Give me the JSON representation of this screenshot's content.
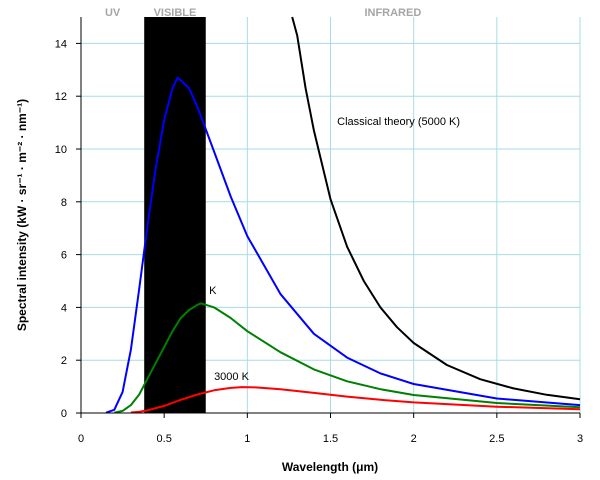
{
  "chart_data": {
    "type": "line",
    "xlabel": "Wavelength (μm)",
    "ylabel": "Spectral intensity (kW · sr⁻¹ · m⁻² · nm⁻¹)",
    "xlim": [
      0,
      3
    ],
    "ylim": [
      0,
      15
    ],
    "x_ticks": [
      "0",
      "0.5",
      "1",
      "1.5",
      "2",
      "2.5",
      "3"
    ],
    "y_ticks": [
      "0",
      "2",
      "4",
      "6",
      "8",
      "10",
      "12",
      "14"
    ],
    "grid": true,
    "regions": [
      {
        "label": "UV",
        "x_start": 0,
        "x_end": 0.38,
        "shaded": false
      },
      {
        "label": "VISIBLE",
        "x_start": 0.38,
        "x_end": 0.75,
        "shaded": true,
        "color": "#000000"
      },
      {
        "label": "INFRARED",
        "x_start": 0.75,
        "x_end": 3,
        "shaded": false
      }
    ],
    "series": [
      {
        "color": "#0000ff",
        "x": [
          0.15,
          0.2,
          0.25,
          0.3,
          0.35,
          0.4,
          0.45,
          0.5,
          0.55,
          0.58,
          0.6,
          0.65,
          0.7,
          0.8,
          0.9,
          1.0,
          1.2,
          1.4,
          1.6,
          1.8,
          2.0,
          2.5,
          3.0
        ],
        "y": [
          0.01,
          0.12,
          0.8,
          2.4,
          4.7,
          7.1,
          9.3,
          11.1,
          12.3,
          12.7,
          12.6,
          12.3,
          11.6,
          9.9,
          8.2,
          6.7,
          4.5,
          3.0,
          2.1,
          1.5,
          1.1,
          0.55,
          0.3
        ]
      },
      {
        "color": "#008000",
        "x": [
          0.2,
          0.25,
          0.3,
          0.35,
          0.4,
          0.45,
          0.5,
          0.55,
          0.6,
          0.65,
          0.7,
          0.72,
          0.75,
          0.8,
          0.9,
          1.0,
          1.2,
          1.4,
          1.6,
          1.8,
          2.0,
          2.5,
          3.0
        ],
        "y": [
          0.01,
          0.08,
          0.3,
          0.7,
          1.3,
          1.9,
          2.5,
          3.1,
          3.6,
          3.9,
          4.1,
          4.15,
          4.1,
          4.0,
          3.6,
          3.1,
          2.3,
          1.65,
          1.2,
          0.9,
          0.68,
          0.38,
          0.22
        ]
      },
      {
        "color": "#ff0000",
        "x": [
          0.3,
          0.35,
          0.4,
          0.5,
          0.6,
          0.7,
          0.8,
          0.9,
          0.97,
          1.05,
          1.2,
          1.4,
          1.6,
          1.8,
          2.0,
          2.5,
          3.0
        ],
        "y": [
          0.02,
          0.05,
          0.1,
          0.27,
          0.5,
          0.7,
          0.86,
          0.95,
          0.98,
          0.97,
          0.9,
          0.76,
          0.62,
          0.5,
          0.4,
          0.24,
          0.14
        ]
      },
      {
        "color": "#000000",
        "x": [
          1.27,
          1.3,
          1.35,
          1.4,
          1.5,
          1.6,
          1.7,
          1.8,
          1.9,
          2.0,
          2.2,
          2.4,
          2.6,
          2.8,
          3.0
        ],
        "y": [
          15.4,
          14.3,
          12.3,
          10.7,
          8.1,
          6.3,
          5.0,
          4.0,
          3.25,
          2.65,
          1.82,
          1.28,
          0.93,
          0.69,
          0.52
        ]
      }
    ],
    "annotations": [
      {
        "text": "Classical theory (5000 K)",
        "x": 1.54,
        "y": 10.9
      },
      {
        "text": "K",
        "x": 0.77,
        "y": 4.5
      },
      {
        "text": "3000 K",
        "x": 0.8,
        "y": 1.25
      }
    ]
  }
}
